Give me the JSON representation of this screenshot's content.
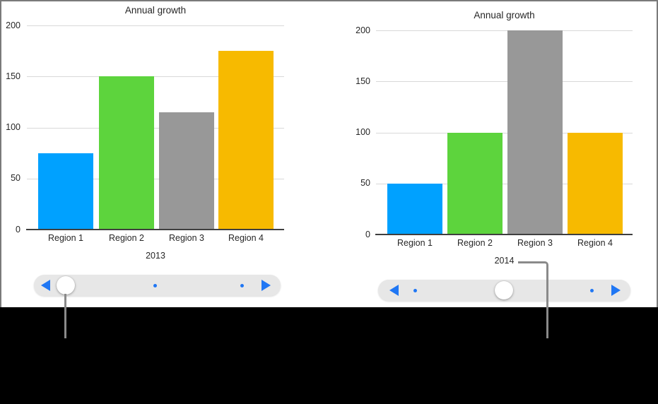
{
  "colors": {
    "background": "#FFFFFF",
    "border": "#7A7A7A",
    "grid": "#D8D8D8",
    "axis": "#3F3F3F",
    "text": "#262626",
    "track": "#E7E7E7",
    "knob": "#FFFFFF",
    "slider_blue": "#2077F4",
    "callout": "#8A8A8A",
    "mask": "#000000"
  },
  "chart_data": [
    {
      "type": "bar",
      "title": "Annual growth",
      "xlabel": "2013",
      "ylabel": "",
      "categories": [
        "Region 1",
        "Region 2",
        "Region 3",
        "Region 4"
      ],
      "values": [
        75,
        150,
        115,
        175
      ],
      "bar_colors": [
        "#00A1FF",
        "#5DD43D",
        "#989898",
        "#F7BA00"
      ],
      "ylim": [
        0,
        200
      ],
      "yticks": [
        0,
        50,
        100,
        150,
        200
      ],
      "grid": true,
      "legend": "none"
    },
    {
      "type": "bar",
      "title": "Annual growth",
      "xlabel": "2014",
      "ylabel": "",
      "categories": [
        "Region 1",
        "Region 2",
        "Region 3",
        "Region 4"
      ],
      "values": [
        50,
        100,
        200,
        100
      ],
      "bar_colors": [
        "#00A1FF",
        "#5DD43D",
        "#989898",
        "#F7BA00"
      ],
      "ylim": [
        0,
        200
      ],
      "yticks": [
        0,
        50,
        100,
        150,
        200
      ],
      "grid": true,
      "legend": "none"
    }
  ],
  "sliders": [
    {
      "name": "chart-pager-2013",
      "positions": 3,
      "active_index": 0,
      "prev_icon": "chevron-left-icon",
      "next_icon": "chevron-right-icon",
      "knob_icon": "slider-knob",
      "dot_icon": "page-dot"
    },
    {
      "name": "chart-pager-2014",
      "positions": 3,
      "active_index": 1,
      "prev_icon": "chevron-left-icon",
      "next_icon": "chevron-right-icon",
      "knob_icon": "slider-knob",
      "dot_icon": "page-dot"
    }
  ]
}
